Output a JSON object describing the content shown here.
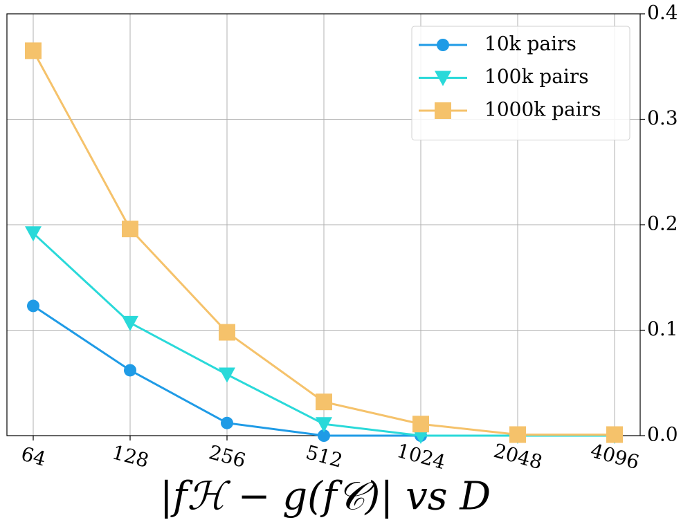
{
  "chart_data": {
    "type": "line",
    "xlabel": "|fℋ − g(f𝒞)| vs D",
    "categories": [
      "64",
      "128",
      "256",
      "512",
      "1024",
      "2048",
      "4096"
    ],
    "series": [
      {
        "name": "10k pairs",
        "color": "#1f9be6",
        "marker": "circle",
        "values": [
          0.123,
          0.062,
          0.012,
          0.0,
          0.0,
          0.0,
          0.0
        ]
      },
      {
        "name": "100k pairs",
        "color": "#2ad9d9",
        "marker": "triangle-down",
        "values": [
          0.192,
          0.107,
          0.058,
          0.011,
          0.0,
          0.0,
          0.0
        ]
      },
      {
        "name": "1000k pairs",
        "color": "#f5c26b",
        "marker": "square",
        "values": [
          0.365,
          0.196,
          0.098,
          0.032,
          0.011,
          0.001,
          0.001
        ]
      }
    ],
    "ylim": [
      0,
      0.4
    ],
    "yticks": [
      {
        "value": 0,
        "label": "0.0"
      },
      0.1,
      0.2,
      0.3,
      0.4
    ],
    "yaxis_side": "right",
    "grid": true,
    "legend": "upper right"
  }
}
